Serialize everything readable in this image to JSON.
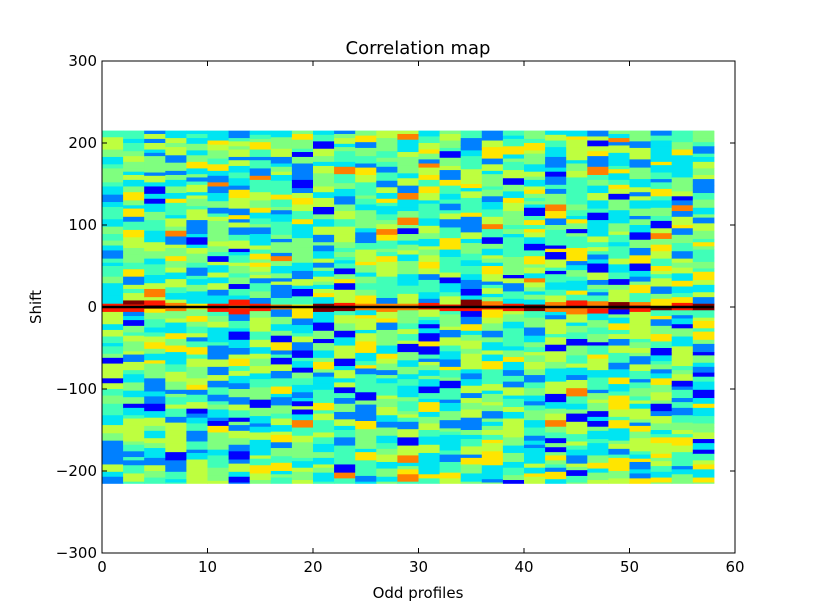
{
  "chart_data": {
    "type": "heatmap",
    "title": "Correlation map",
    "xlabel": "Odd profiles",
    "ylabel": "Shift",
    "xlim": [
      0,
      60
    ],
    "ylim": [
      -300,
      300
    ],
    "xticks": [
      "0",
      "10",
      "20",
      "30",
      "40",
      "50",
      "60"
    ],
    "yticks": [
      "−300",
      "−200",
      "−100",
      "0",
      "100",
      "200",
      "300"
    ],
    "heatmap_extent": {
      "x": [
        0,
        58
      ],
      "y": [
        -215,
        215
      ]
    },
    "columns": 29,
    "reference_line": {
      "y": 0,
      "color": "#000000"
    },
    "colormap": [
      "#00007f",
      "#0000ff",
      "#0080ff",
      "#00e5f2",
      "#40ffb8",
      "#7fff7f",
      "#beff3f",
      "#ffe500",
      "#ff7f00",
      "#ff1a00",
      "#7f0000"
    ],
    "background_value_color": "#30ffc8",
    "grid": false
  }
}
